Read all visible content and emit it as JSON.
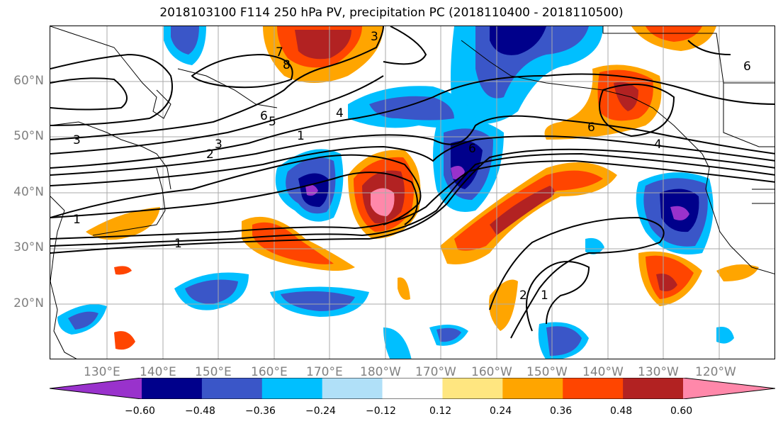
{
  "title": "2018103100 F114 250 hPa PV, precipitation PC (2018110400 - 2018110500)",
  "lat_labels": [
    "60°N",
    "50°N",
    "40°N",
    "30°N",
    "20°N"
  ],
  "lon_labels": [
    "130°E",
    "140°E",
    "150°E",
    "160°E",
    "170°E",
    "180°W",
    "170°W",
    "160°W",
    "150°W",
    "140°W",
    "130°W",
    "120°W"
  ],
  "colorbar": {
    "ticks": [
      "−0.60",
      "−0.48",
      "−0.36",
      "−0.24",
      "−0.12",
      "0.12",
      "0.24",
      "0.36",
      "0.48",
      "0.60"
    ],
    "colors": [
      "#9932cc",
      "#00008b",
      "#3a56c8",
      "#00bfff",
      "#b0e0f8",
      "#ffffff",
      "#ffe680",
      "#ffa500",
      "#ff4500",
      "#b22222",
      "#ff88aa"
    ]
  },
  "contour_labels": [
    "3",
    "7",
    "8",
    "6",
    "5",
    "4",
    "1",
    "3",
    "2",
    "3",
    "1",
    "1",
    "6",
    "6",
    "4",
    "6",
    "2",
    "1"
  ]
}
